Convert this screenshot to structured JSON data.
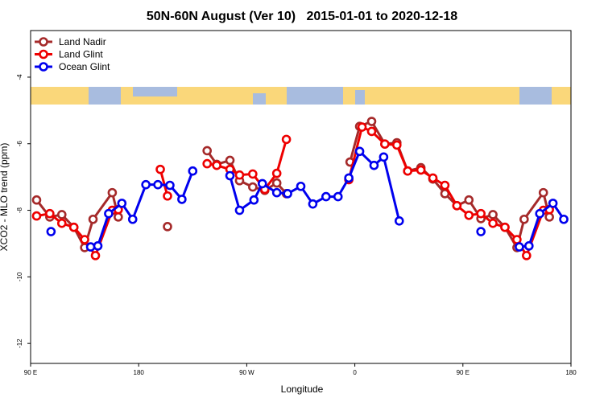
{
  "chart_data": {
    "type": "line",
    "title": "50N-60N August (Ver 10)   2015-01-01 to 2020-12-18",
    "x_label": "Longitude",
    "y_label": "XCO2 - MLO trend (ppm)",
    "xlim": [
      90,
      540
    ],
    "xticks": [
      {
        "value": 90,
        "label": "90 E"
      },
      {
        "value": 180,
        "label": "180"
      },
      {
        "value": 270,
        "label": "90 W"
      },
      {
        "value": 360,
        "label": "0"
      },
      {
        "value": 450,
        "label": "90 E"
      },
      {
        "value": 540,
        "label": "180"
      }
    ],
    "ylim": [
      -12.6,
      -2.6
    ],
    "yticks": [
      -12,
      -10,
      -8,
      -6,
      -4
    ],
    "legend": "top-left",
    "series": [
      {
        "name": "Land Nadir",
        "color": "#a52a2a",
        "x": [
          95,
          106,
          116,
          126,
          135,
          142,
          158,
          163,
          null,
          204,
          null,
          237,
          245,
          256,
          264,
          275,
          285,
          295,
          303,
          null,
          356,
          364,
          374,
          385,
          395,
          404,
          415,
          425,
          435,
          445,
          455,
          465,
          475,
          485,
          495,
          501,
          517,
          522
        ],
        "values": [
          -7.69,
          -8.2,
          -8.13,
          -8.51,
          -9.12,
          -8.27,
          -7.47,
          -8.2,
          null,
          -8.49,
          null,
          -6.21,
          -6.62,
          -6.5,
          -7.11,
          -7.3,
          -7.4,
          -7.18,
          -7.5,
          null,
          -6.55,
          -5.48,
          -5.33,
          -6.01,
          -5.97,
          -6.82,
          -6.72,
          -7.06,
          -7.5,
          -7.86,
          -7.69,
          -8.25,
          -8.13,
          -8.51,
          -9.12,
          -8.27,
          -7.47,
          -8.2
        ]
      },
      {
        "name": "Land Glint",
        "color": "#ee0000",
        "x": [
          95,
          106,
          116,
          126,
          135,
          144,
          158,
          163,
          null,
          198,
          204,
          null,
          237,
          245,
          256,
          264,
          275,
          285,
          295,
          303,
          null,
          355,
          366,
          374,
          385,
          395,
          404,
          415,
          425,
          435,
          445,
          455,
          465,
          475,
          485,
          495,
          503,
          517,
          522
        ],
        "values": [
          -8.17,
          -8.1,
          -8.39,
          -8.51,
          -8.88,
          -9.36,
          -8.0,
          -7.98,
          null,
          -6.77,
          -7.57,
          null,
          -6.6,
          -6.65,
          -6.77,
          -6.94,
          -6.91,
          -7.37,
          -6.89,
          -5.87,
          null,
          -7.08,
          -5.5,
          -5.63,
          -6.01,
          -6.04,
          -6.82,
          -6.79,
          -7.03,
          -7.25,
          -7.86,
          -8.15,
          -8.1,
          -8.39,
          -8.51,
          -8.88,
          -9.36,
          -8.0,
          -7.98
        ]
      },
      {
        "name": "Ocean Glint",
        "color": "#0000ee",
        "x": [
          107,
          null,
          140,
          146,
          155,
          166,
          175,
          186,
          196,
          206,
          216,
          225,
          null,
          256,
          264,
          276,
          283,
          295,
          304,
          315,
          325,
          336,
          346,
          355,
          364,
          376,
          384,
          397,
          null,
          465,
          null,
          497,
          505,
          514,
          525,
          534
        ],
        "values": [
          -8.64,
          null,
          -9.1,
          -9.07,
          -8.1,
          -7.79,
          -8.27,
          -7.23,
          -7.23,
          -7.25,
          -7.67,
          -6.82,
          null,
          -6.96,
          -8.0,
          -7.69,
          -7.2,
          -7.47,
          -7.5,
          -7.28,
          -7.81,
          -7.59,
          -7.59,
          -7.03,
          -6.23,
          -6.65,
          -6.4,
          -8.32,
          null,
          -8.64,
          null,
          -9.1,
          -9.07,
          -8.1,
          -7.79,
          -8.27
        ]
      }
    ]
  }
}
